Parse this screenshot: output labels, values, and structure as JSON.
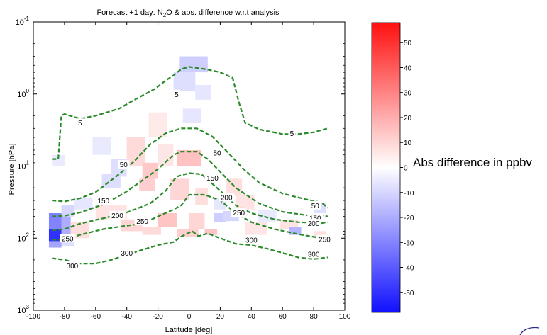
{
  "chart_data": {
    "type": "heatmap",
    "title_parts": {
      "a": "Forecast +1 day: N",
      "sub": "2",
      "b": "O & abs. difference w.r.t analysis"
    },
    "xlabel": "Latitude [deg]",
    "ylabel": "Pressure [hPa]",
    "xlim": [
      -100,
      100
    ],
    "xticks": [
      "-100",
      "-80",
      "-60",
      "-40",
      "-20",
      "0",
      "20",
      "40",
      "60",
      "80",
      "100"
    ],
    "ylim": [
      0.1,
      1000
    ],
    "yscale": "log",
    "yaxis_inverted": true,
    "yticks": [
      {
        "value": 0.1,
        "base": "10",
        "exp": "-1"
      },
      {
        "value": 1,
        "base": "10",
        "exp": "0"
      },
      {
        "value": 10,
        "base": "10",
        "exp": "1"
      },
      {
        "value": 100,
        "base": "10",
        "exp": "2"
      },
      {
        "value": 1000,
        "base": "10",
        "exp": "3"
      }
    ],
    "colorbar": {
      "label": "Abs difference in ppbv",
      "range": [
        -58,
        58
      ],
      "ticks": [
        "50",
        "40",
        "30",
        "20",
        "10",
        "0",
        "-10",
        "-20",
        "-30",
        "-40",
        "-50"
      ],
      "tick_values": [
        50,
        40,
        30,
        20,
        10,
        0,
        -10,
        -20,
        -30,
        -40,
        -50
      ],
      "colormap": "blue-white-red",
      "low_color": "#1010ff",
      "high_color": "#ff1010"
    },
    "contour_color": "#2a8a2a",
    "contours": [
      {
        "label": "5",
        "label_at": [
          [
            -70,
            2.5
          ],
          [
            -8,
            1.0
          ],
          [
            66,
            3.5
          ]
        ],
        "points": [
          [
            -88,
            8
          ],
          [
            -84,
            8
          ],
          [
            -82,
            2
          ],
          [
            -80,
            1.9
          ],
          [
            -70,
            2.2
          ],
          [
            -60,
            2
          ],
          [
            -45,
            1.6
          ],
          [
            -35,
            1.2
          ],
          [
            -22,
            0.85
          ],
          [
            -15,
            0.65
          ],
          [
            -10,
            0.55
          ],
          [
            -5,
            0.45
          ],
          [
            0,
            0.42
          ],
          [
            10,
            0.45
          ],
          [
            20,
            0.5
          ],
          [
            28,
            0.6
          ],
          [
            32,
            1.3
          ],
          [
            36,
            2.5
          ],
          [
            45,
            3.1
          ],
          [
            60,
            3.6
          ],
          [
            70,
            3.6
          ],
          [
            80,
            3.4
          ],
          [
            89,
            3.0
          ]
        ]
      },
      {
        "label": "50",
        "label_at": [
          [
            -42,
            9.5
          ],
          [
            18,
            6.5
          ],
          [
            81,
            35
          ]
        ],
        "points": [
          [
            -88,
            30
          ],
          [
            -80,
            31
          ],
          [
            -70,
            28
          ],
          [
            -60,
            23
          ],
          [
            -45,
            13
          ],
          [
            -35,
            8.5
          ],
          [
            -25,
            5
          ],
          [
            -15,
            3.5
          ],
          [
            -5,
            3.0
          ],
          [
            5,
            3.0
          ],
          [
            15,
            3.9
          ],
          [
            25,
            6.5
          ],
          [
            35,
            11
          ],
          [
            45,
            17
          ],
          [
            60,
            24
          ],
          [
            75,
            29
          ],
          [
            85,
            32
          ],
          [
            89,
            38
          ]
        ]
      },
      {
        "label": "150",
        "label_at": [
          [
            -55,
            30
          ],
          [
            15,
            14.5
          ],
          [
            81,
            52
          ]
        ],
        "points": [
          [
            -88,
            50
          ],
          [
            -80,
            49
          ],
          [
            -70,
            44
          ],
          [
            -55,
            34
          ],
          [
            -42,
            24
          ],
          [
            -32,
            17
          ],
          [
            -20,
            11
          ],
          [
            -10,
            7
          ],
          [
            -5,
            6.3
          ],
          [
            5,
            6.3
          ],
          [
            12,
            8
          ],
          [
            20,
            12
          ],
          [
            30,
            20
          ],
          [
            45,
            33
          ],
          [
            60,
            43
          ],
          [
            75,
            48
          ],
          [
            85,
            48
          ],
          [
            89,
            50
          ]
        ]
      },
      {
        "label": "200",
        "label_at": [
          [
            -46,
            48
          ],
          [
            24,
            27
          ],
          [
            80,
            62
          ]
        ],
        "points": [
          [
            -88,
            78
          ],
          [
            -80,
            75
          ],
          [
            -70,
            63
          ],
          [
            -55,
            53
          ],
          [
            -40,
            44
          ],
          [
            -25,
            33
          ],
          [
            -15,
            22
          ],
          [
            -8,
            14
          ],
          [
            0,
            12.5
          ],
          [
            8,
            13
          ],
          [
            20,
            22
          ],
          [
            30,
            35
          ],
          [
            40,
            45
          ],
          [
            55,
            55
          ],
          [
            70,
            60
          ],
          [
            85,
            62
          ],
          [
            89,
            60
          ]
        ]
      },
      {
        "label": "250",
        "label_at": [
          [
            -30,
            58
          ],
          [
            -78,
            100
          ],
          [
            32,
            44
          ],
          [
            87,
            103
          ]
        ],
        "points": [
          [
            -88,
            105
          ],
          [
            -80,
            105
          ],
          [
            -70,
            90
          ],
          [
            -55,
            75
          ],
          [
            -42,
            68
          ],
          [
            -30,
            63
          ],
          [
            -20,
            50
          ],
          [
            -10,
            40
          ],
          [
            -5,
            35
          ],
          [
            0,
            25
          ],
          [
            10,
            25
          ],
          [
            20,
            30
          ],
          [
            30,
            45
          ],
          [
            40,
            60
          ],
          [
            55,
            75
          ],
          [
            70,
            88
          ],
          [
            85,
            100
          ],
          [
            89,
            105
          ]
        ]
      },
      {
        "label": "300",
        "label_at": [
          [
            -75,
            240
          ],
          [
            -40,
            160
          ],
          [
            40,
            105
          ],
          [
            80,
            165
          ]
        ],
        "points": [
          [
            -88,
            190
          ],
          [
            -80,
            200
          ],
          [
            -70,
            225
          ],
          [
            -60,
            225
          ],
          [
            -50,
            200
          ],
          [
            -40,
            170
          ],
          [
            -30,
            145
          ],
          [
            -20,
            125
          ],
          [
            -10,
            113
          ],
          [
            -5,
            95
          ],
          [
            2,
            80
          ],
          [
            6,
            94
          ],
          [
            12,
            86
          ],
          [
            20,
            100
          ],
          [
            30,
            120
          ],
          [
            40,
            125
          ],
          [
            50,
            140
          ],
          [
            60,
            160
          ],
          [
            70,
            185
          ],
          [
            80,
            195
          ],
          [
            89,
            185
          ]
        ]
      }
    ],
    "difference_field": [
      {
        "lat": [
          -90,
          -82
        ],
        "p": [
          45,
          75
        ],
        "diff": -30
      },
      {
        "lat": [
          -90,
          -82
        ],
        "p": [
          75,
          110
        ],
        "diff": -50
      },
      {
        "lat": [
          -90,
          -82
        ],
        "p": [
          110,
          135
        ],
        "diff": -22
      },
      {
        "lat": [
          -82,
          -76
        ],
        "p": [
          50,
          110
        ],
        "diff": -20
      },
      {
        "lat": [
          -82,
          -74
        ],
        "p": [
          35,
          50
        ],
        "diff": -10
      },
      {
        "lat": [
          -82,
          -74
        ],
        "p": [
          110,
          130
        ],
        "diff": -8
      },
      {
        "lat": [
          -76,
          -64
        ],
        "p": [
          60,
          100
        ],
        "diff": 8
      },
      {
        "lat": [
          -88,
          -80
        ],
        "p": [
          7,
          10
        ],
        "diff": -5
      },
      {
        "lat": [
          -74,
          -62
        ],
        "p": [
          28,
          40
        ],
        "diff": -6
      },
      {
        "lat": [
          -62,
          -50
        ],
        "p": [
          4,
          7
        ],
        "diff": -5
      },
      {
        "lat": [
          -60,
          -40
        ],
        "p": [
          35,
          55
        ],
        "diff": 7
      },
      {
        "lat": [
          -50,
          -40
        ],
        "p": [
          8,
          14
        ],
        "diff": -8
      },
      {
        "lat": [
          -56,
          -44
        ],
        "p": [
          13,
          20
        ],
        "diff": -8
      },
      {
        "lat": [
          -40,
          -28
        ],
        "p": [
          4,
          10
        ],
        "diff": 9
      },
      {
        "lat": [
          -32,
          -22
        ],
        "p": [
          15,
          22
        ],
        "diff": 12
      },
      {
        "lat": [
          -30,
          -20
        ],
        "p": [
          9,
          15
        ],
        "diff": 13
      },
      {
        "lat": [
          -26,
          -14
        ],
        "p": [
          1.8,
          4
        ],
        "diff": 5
      },
      {
        "lat": [
          -20,
          -10
        ],
        "p": [
          5,
          10
        ],
        "diff": 6
      },
      {
        "lat": [
          -20,
          -8
        ],
        "p": [
          45,
          70
        ],
        "diff": 14
      },
      {
        "lat": [
          -44,
          -30
        ],
        "p": [
          55,
          80
        ],
        "diff": 10
      },
      {
        "lat": [
          -30,
          -18
        ],
        "p": [
          70,
          90
        ],
        "diff": 9
      },
      {
        "lat": [
          -10,
          4
        ],
        "p": [
          0.5,
          0.9
        ],
        "diff": -8
      },
      {
        "lat": [
          -6,
          12
        ],
        "p": [
          0.3,
          0.5
        ],
        "diff": -12
      },
      {
        "lat": [
          4,
          14
        ],
        "p": [
          0.75,
          1.2
        ],
        "diff": -6
      },
      {
        "lat": [
          -4,
          8
        ],
        "p": [
          1.6,
          2.5
        ],
        "diff": -6
      },
      {
        "lat": [
          -8,
          8
        ],
        "p": [
          6,
          10
        ],
        "diff": 15
      },
      {
        "lat": [
          -12,
          0
        ],
        "p": [
          15,
          30
        ],
        "diff": 10
      },
      {
        "lat": [
          4,
          12
        ],
        "p": [
          20,
          35
        ],
        "diff": 8
      },
      {
        "lat": [
          0,
          10
        ],
        "p": [
          45,
          75
        ],
        "diff": 10
      },
      {
        "lat": [
          -8,
          6
        ],
        "p": [
          75,
          95
        ],
        "diff": 12
      },
      {
        "lat": [
          10,
          18
        ],
        "p": [
          75,
          90
        ],
        "diff": 14
      },
      {
        "lat": [
          16,
          24
        ],
        "p": [
          28,
          40
        ],
        "diff": -6
      },
      {
        "lat": [
          16,
          24
        ],
        "p": [
          45,
          60
        ],
        "diff": -12
      },
      {
        "lat": [
          22,
          32
        ],
        "p": [
          42,
          58
        ],
        "diff": -10
      },
      {
        "lat": [
          24,
          34
        ],
        "p": [
          15,
          25
        ],
        "diff": 8
      },
      {
        "lat": [
          30,
          42
        ],
        "p": [
          25,
          40
        ],
        "diff": 7
      },
      {
        "lat": [
          44,
          56
        ],
        "p": [
          40,
          60
        ],
        "diff": -5
      },
      {
        "lat": [
          36,
          50
        ],
        "p": [
          60,
          90
        ],
        "diff": 6
      },
      {
        "lat": [
          58,
          70
        ],
        "p": [
          55,
          75
        ],
        "diff": 7
      },
      {
        "lat": [
          64,
          72
        ],
        "p": [
          70,
          90
        ],
        "diff": -18
      },
      {
        "lat": [
          80,
          88
        ],
        "p": [
          32,
          45
        ],
        "diff": -8
      },
      {
        "lat": [
          80,
          88
        ],
        "p": [
          80,
          95
        ],
        "diff": 8
      }
    ]
  }
}
